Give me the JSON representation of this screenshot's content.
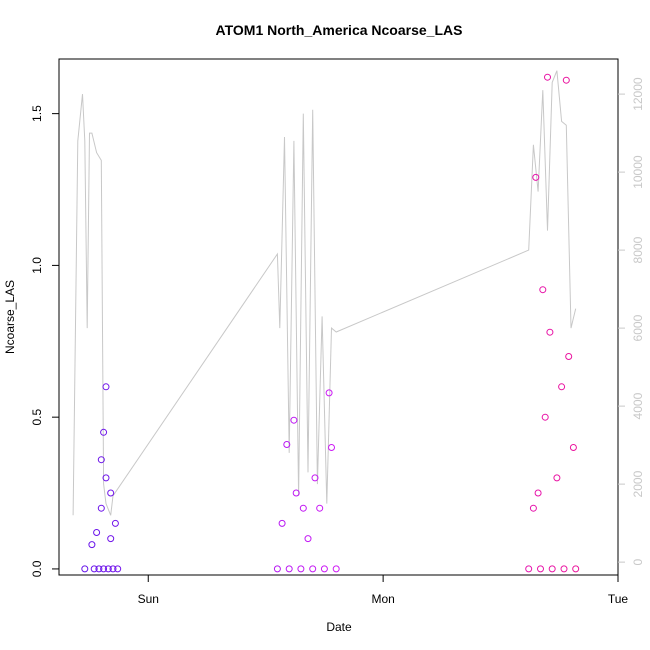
{
  "chart_data": {
    "type": "scatter",
    "title": "ATOM1 North_America Ncoarse_LAS",
    "xlabel": "Date",
    "ylabel": "Ncoarse_LAS",
    "x_ticks": [
      "Sun",
      "Mon",
      "Tue"
    ],
    "x_range_days": [
      -0.38,
      2.0
    ],
    "ylim": [
      -0.02,
      1.68
    ],
    "y_ticks": [
      "0.0",
      "0.5",
      "1.0",
      "1.5"
    ],
    "y_tick_values": [
      0.0,
      0.5,
      1.0,
      1.5
    ],
    "y2lim": [
      -330,
      12900
    ],
    "y2_ticks": [
      "0",
      "2000",
      "4000",
      "6000",
      "8000",
      "10000",
      "12000"
    ],
    "y2_tick_values": [
      0,
      2000,
      4000,
      6000,
      8000,
      10000,
      12000
    ],
    "grid": false,
    "legend": "none",
    "series": [
      {
        "marker": "open-circle",
        "color_ramp": [
          "#5b14e8",
          "#d018f5",
          "#f0138c"
        ],
        "x_day_offset": [
          -0.27,
          -0.23,
          -0.21,
          -0.19,
          -0.17,
          -0.15,
          -0.13,
          -0.22,
          -0.2,
          -0.18,
          -0.16,
          -0.14,
          -0.24,
          -0.2,
          -0.16,
          -0.18,
          -0.19,
          0.55,
          0.6,
          0.65,
          0.7,
          0.75,
          0.8,
          0.57,
          0.63,
          0.68,
          0.73,
          0.78,
          0.59,
          0.66,
          0.71,
          0.77,
          0.62,
          1.62,
          1.67,
          1.72,
          1.77,
          1.82,
          1.64,
          1.69,
          1.74,
          1.79,
          1.66,
          1.71,
          1.76,
          1.81,
          1.65,
          1.7,
          1.68,
          1.78
        ],
        "y": [
          0.0,
          0.0,
          0.0,
          0.0,
          0.0,
          0.0,
          0.0,
          0.12,
          0.2,
          0.3,
          0.25,
          0.15,
          0.08,
          0.36,
          0.1,
          0.6,
          0.45,
          0.0,
          0.0,
          0.0,
          0.0,
          0.0,
          0.0,
          0.15,
          0.25,
          0.1,
          0.2,
          0.4,
          0.41,
          0.2,
          0.3,
          0.58,
          0.49,
          0.0,
          0.0,
          0.0,
          0.0,
          0.0,
          0.2,
          0.5,
          0.3,
          0.7,
          0.25,
          0.78,
          0.6,
          0.4,
          1.29,
          1.62,
          0.92,
          1.61
        ]
      }
    ],
    "right_axis_series": {
      "color": "#c8c8c8",
      "x_day_offset": [
        -0.32,
        -0.3,
        -0.28,
        -0.27,
        -0.26,
        -0.25,
        -0.24,
        -0.22,
        -0.2,
        -0.19,
        -0.18,
        -0.16,
        -0.15,
        0.55,
        0.56,
        0.58,
        0.6,
        0.62,
        0.64,
        0.66,
        0.68,
        0.7,
        0.72,
        0.74,
        0.76,
        0.78,
        0.8,
        1.62,
        1.64,
        1.66,
        1.68,
        1.7,
        1.72,
        1.74,
        1.76,
        1.78,
        1.8,
        1.82
      ],
      "y": [
        1200,
        10800,
        12000,
        10800,
        6000,
        11000,
        11000,
        10500,
        10300,
        2000,
        1500,
        1200,
        1700,
        7900,
        6000,
        10900,
        2800,
        10800,
        1700,
        11500,
        2300,
        11600,
        2000,
        6300,
        1500,
        6000,
        5900,
        8000,
        10700,
        9500,
        12100,
        8500,
        12300,
        12600,
        11300,
        11200,
        6000,
        6500
      ]
    }
  }
}
